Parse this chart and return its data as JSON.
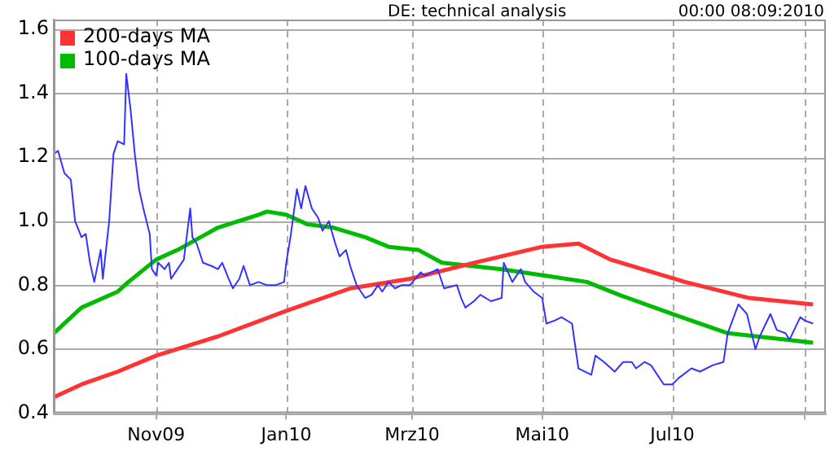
{
  "chart_data": {
    "type": "line",
    "title": "DE: technical analysis",
    "annotations": [
      "00:00 08:09:2010"
    ],
    "xlim": [
      "2009-09-14",
      "2010-09-11"
    ],
    "xticks": [
      {
        "value": "2009-11-01",
        "label": "Nov09"
      },
      {
        "value": "2010-01-01",
        "label": "Jan10"
      },
      {
        "value": "2010-03-01",
        "label": "Mrz10"
      },
      {
        "value": "2010-05-01",
        "label": "Mai10"
      },
      {
        "value": "2010-07-01",
        "label": "Jul10"
      },
      {
        "value": "2010-09-01",
        "label": null
      }
    ],
    "ylim": [
      0.4,
      1.63
    ],
    "yticks": [
      0.4,
      0.6,
      0.8,
      {
        "value": 1,
        "label": "1.0"
      },
      1.2,
      1.4,
      1.6
    ],
    "grid": true,
    "legend": "top left",
    "marker": "none",
    "line_style": "solid",
    "series": [
      {
        "color": "#3333ff",
        "x": [
          "2009-09-14",
          "2009-09-16",
          "2009-09-19",
          "2009-09-22",
          "2009-09-24",
          "2009-09-27",
          "2009-09-29",
          "2009-10-01",
          "2009-10-03",
          "2009-10-06",
          "2009-10-07",
          "2009-10-10",
          "2009-10-12",
          "2009-10-14",
          "2009-10-17",
          "2009-10-18",
          "2009-10-20",
          "2009-10-22",
          "2009-10-24",
          "2009-10-26",
          "2009-10-29",
          "2009-10-30",
          "2009-11-01",
          "2009-11-02",
          "2009-11-05",
          "2009-11-07",
          "2009-11-08",
          "2009-11-11",
          "2009-11-14",
          "2009-11-17",
          "2009-11-18",
          "2009-11-20",
          "2009-11-23",
          "2009-11-27",
          "2009-11-30",
          "2009-12-02",
          "2009-12-05",
          "2009-12-07",
          "2009-12-10",
          "2009-12-12",
          "2009-12-15",
          "2009-12-19",
          "2009-12-23",
          "2009-12-27",
          "2009-12-31",
          "2010-01-01",
          "2010-01-03",
          "2010-01-06",
          "2010-01-08",
          "2010-01-10",
          "2010-01-13",
          "2010-01-16",
          "2010-01-18",
          "2010-01-21",
          "2010-01-24",
          "2010-01-26",
          "2010-01-29",
          "2010-01-31",
          "2010-02-03",
          "2010-02-05",
          "2010-02-07",
          "2010-02-10",
          "2010-02-13",
          "2010-02-15",
          "2010-02-18",
          "2010-02-21",
          "2010-02-24",
          "2010-02-28",
          "2010-03-05",
          "2010-03-07",
          "2010-03-13",
          "2010-03-16",
          "2010-03-22",
          "2010-03-24",
          "2010-03-26",
          "2010-03-30",
          "2010-04-02",
          "2010-04-07",
          "2010-04-12",
          "2010-04-13",
          "2010-04-17",
          "2010-04-21",
          "2010-04-23",
          "2010-04-27",
          "2010-05-01",
          "2010-05-03",
          "2010-05-07",
          "2010-05-10",
          "2010-05-15",
          "2010-05-18",
          "2010-05-24",
          "2010-05-26",
          "2010-05-30",
          "2010-06-04",
          "2010-06-08",
          "2010-06-12",
          "2010-06-14",
          "2010-06-18",
          "2010-06-21",
          "2010-06-27",
          "2010-07-01",
          "2010-07-04",
          "2010-07-10",
          "2010-07-14",
          "2010-07-20",
          "2010-07-25",
          "2010-07-27",
          "2010-08-01",
          "2010-08-05",
          "2010-08-09",
          "2010-08-11",
          "2010-08-16",
          "2010-08-19",
          "2010-08-23",
          "2010-08-25",
          "2010-08-30",
          "2010-09-01",
          "2010-09-05"
        ],
        "values": [
          1.21,
          1.22,
          1.15,
          1.13,
          1.0,
          0.95,
          0.96,
          0.87,
          0.81,
          0.91,
          0.82,
          1.0,
          1.21,
          1.25,
          1.24,
          1.46,
          1.35,
          1.21,
          1.1,
          1.04,
          0.96,
          0.85,
          0.83,
          0.87,
          0.85,
          0.87,
          0.82,
          0.85,
          0.88,
          1.04,
          0.95,
          0.93,
          0.87,
          0.86,
          0.85,
          0.87,
          0.82,
          0.79,
          0.82,
          0.86,
          0.8,
          0.81,
          0.8,
          0.8,
          0.81,
          0.87,
          0.95,
          1.1,
          1.04,
          1.11,
          1.04,
          1.01,
          0.97,
          1.0,
          0.93,
          0.89,
          0.91,
          0.86,
          0.8,
          0.78,
          0.76,
          0.77,
          0.8,
          0.78,
          0.81,
          0.79,
          0.8,
          0.8,
          0.84,
          0.83,
          0.85,
          0.79,
          0.8,
          0.76,
          0.73,
          0.75,
          0.77,
          0.75,
          0.76,
          0.87,
          0.81,
          0.85,
          0.81,
          0.78,
          0.76,
          0.68,
          0.69,
          0.7,
          0.68,
          0.54,
          0.52,
          0.58,
          0.56,
          0.53,
          0.56,
          0.56,
          0.54,
          0.56,
          0.55,
          0.49,
          0.49,
          0.51,
          0.54,
          0.53,
          0.55,
          0.56,
          0.65,
          0.74,
          0.71,
          0.6,
          0.64,
          0.71,
          0.66,
          0.65,
          0.63,
          0.7,
          0.69,
          0.68
        ]
      },
      {
        "name": "200-days MA",
        "color": "#ff3333",
        "x": [
          "2009-09-14",
          "2009-09-27",
          "2009-10-14",
          "2009-11-01",
          "2009-11-30",
          "2010-01-01",
          "2010-01-31",
          "2010-02-28",
          "2010-03-30",
          "2010-05-01",
          "2010-05-18",
          "2010-06-02",
          "2010-07-07",
          "2010-08-06",
          "2010-09-05"
        ],
        "values": [
          0.45,
          0.49,
          0.53,
          0.58,
          0.64,
          0.72,
          0.79,
          0.82,
          0.87,
          0.92,
          0.93,
          0.88,
          0.81,
          0.76,
          0.74
        ]
      },
      {
        "name": "100-days MA",
        "color": "#00bb00",
        "x": [
          "2009-09-14",
          "2009-09-27",
          "2009-10-14",
          "2009-10-19",
          "2009-11-01",
          "2009-11-11",
          "2009-11-30",
          "2009-12-19",
          "2009-12-23",
          "2010-01-01",
          "2010-01-11",
          "2010-01-23",
          "2010-02-07",
          "2010-02-18",
          "2010-03-04",
          "2010-03-15",
          "2010-04-12",
          "2010-05-02",
          "2010-05-22",
          "2010-06-06",
          "2010-07-01",
          "2010-07-27",
          "2010-09-05"
        ],
        "values": [
          0.65,
          0.73,
          0.78,
          0.81,
          0.88,
          0.91,
          0.98,
          1.02,
          1.03,
          1.02,
          0.99,
          0.98,
          0.95,
          0.92,
          0.91,
          0.87,
          0.85,
          0.83,
          0.81,
          0.77,
          0.71,
          0.65,
          0.62
        ]
      }
    ]
  }
}
